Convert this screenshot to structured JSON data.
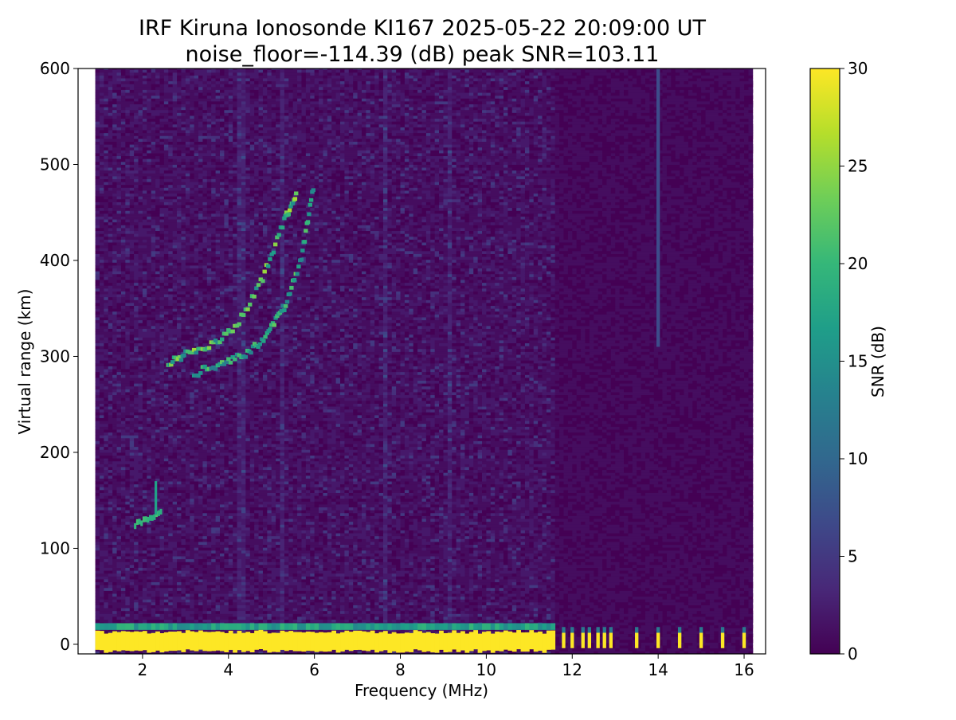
{
  "chart_data": {
    "type": "heatmap",
    "title": "IRF Kiruna Ionosonde KI167 2025-05-22 20:09:00  UT",
    "subtitle": "noise_floor=-114.39 (dB) peak SNR=103.11",
    "xlabel": "Frequency (MHz)",
    "ylabel": "Virtual range (km)",
    "xlim": [
      0.5,
      16.5
    ],
    "ylim": [
      -10,
      600
    ],
    "x_ticks": [
      2,
      4,
      6,
      8,
      10,
      12,
      14,
      16
    ],
    "x_tick_labels": [
      "2",
      "4",
      "6",
      "8",
      "10",
      "12",
      "14",
      "16"
    ],
    "y_ticks": [
      0,
      100,
      200,
      300,
      400,
      500,
      600
    ],
    "y_tick_labels": [
      "0",
      "100",
      "200",
      "300",
      "400",
      "500",
      "600"
    ],
    "data_freq_range_mhz": [
      0.9,
      16.2
    ],
    "colorbar": {
      "label": "SNR (dB)",
      "range": [
        0,
        30
      ],
      "ticks": [
        0,
        5,
        10,
        15,
        20,
        25,
        30
      ],
      "tick_labels": [
        "0",
        "5",
        "10",
        "15",
        "20",
        "25",
        "30"
      ],
      "colormap": "viridis",
      "stops": [
        "#440154",
        "#482878",
        "#3e4989",
        "#31688e",
        "#26828e",
        "#1f9e89",
        "#35b779",
        "#6ece58",
        "#b5de2b",
        "#fde725"
      ]
    },
    "features": [
      {
        "name": "ground-clutter band",
        "freq_mhz": [
          0.9,
          11.5
        ],
        "range_km": [
          -5,
          15
        ],
        "snr_db": 30
      },
      {
        "name": "E-layer echo",
        "freq_mhz": [
          1.8,
          2.4
        ],
        "range_km": [
          118,
          170
        ],
        "snr_db": 18
      },
      {
        "name": "F-layer trace (O)",
        "points_mhz_km": [
          [
            2.6,
            290
          ],
          [
            3.0,
            300
          ],
          [
            3.6,
            310
          ],
          [
            4.2,
            330
          ],
          [
            4.8,
            380
          ],
          [
            5.3,
            440
          ],
          [
            5.6,
            470
          ]
        ],
        "snr_db": 20
      },
      {
        "name": "F-layer trace (X)",
        "points_mhz_km": [
          [
            3.2,
            280
          ],
          [
            3.8,
            290
          ],
          [
            4.4,
            300
          ],
          [
            4.9,
            320
          ],
          [
            5.3,
            350
          ],
          [
            5.7,
            400
          ],
          [
            6.0,
            480
          ]
        ],
        "snr_db": 18
      },
      {
        "name": "interference line",
        "freq_mhz": 14.0,
        "range_km": [
          310,
          600
        ],
        "snr_db": 7
      }
    ]
  }
}
